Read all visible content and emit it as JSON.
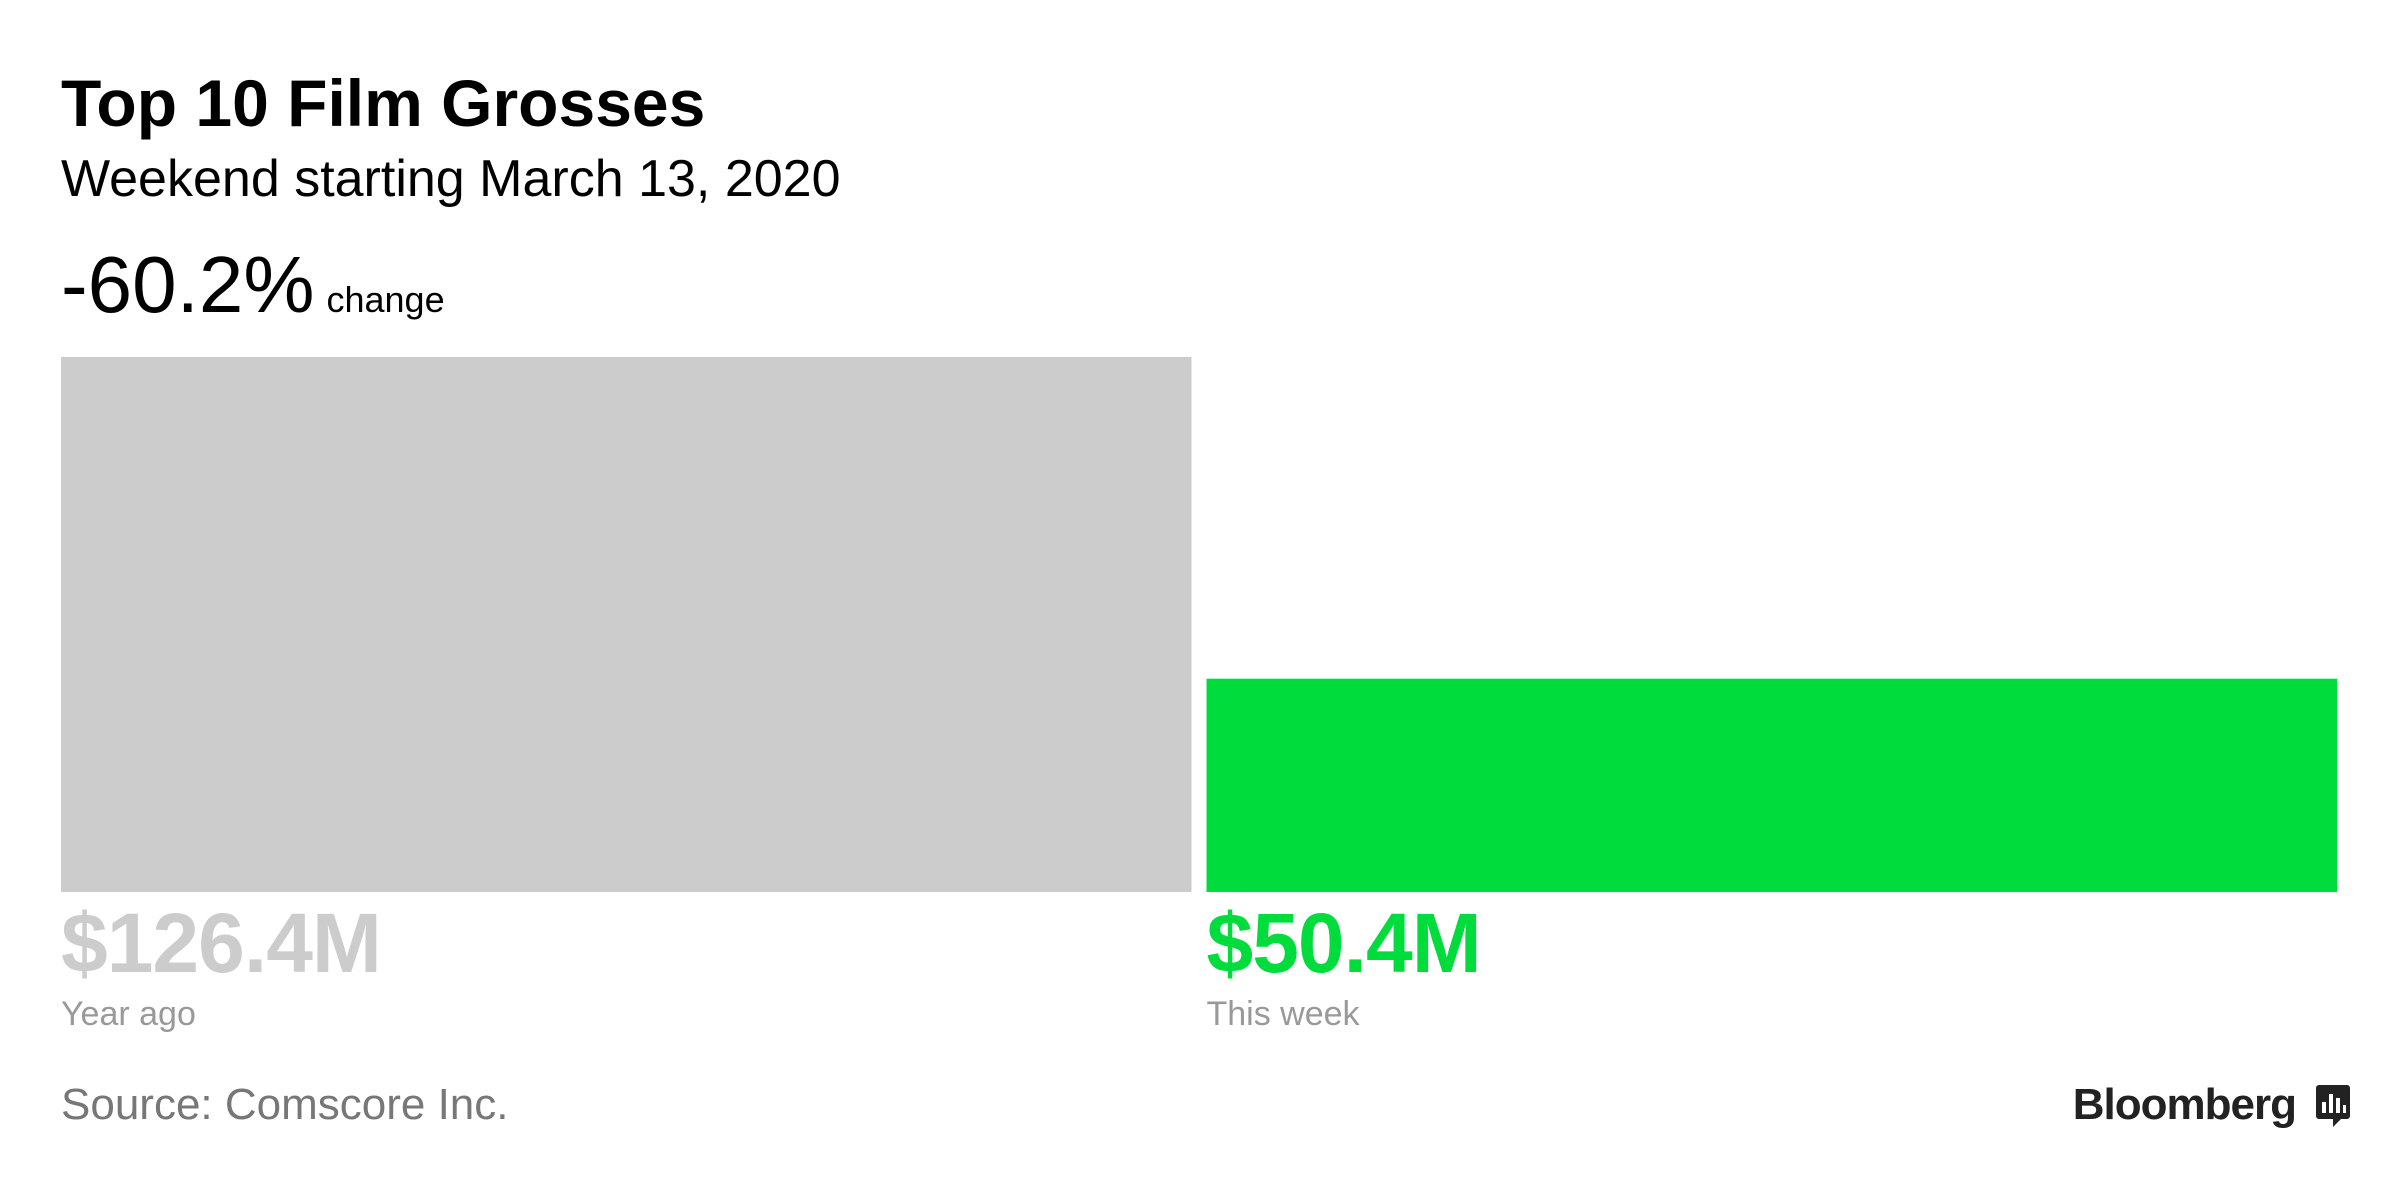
{
  "chart_data": {
    "type": "bar",
    "title": "Top 10 Film Grosses",
    "subtitle": "Weekend starting March 13, 2020",
    "change": "-60.2%",
    "change_text": "change",
    "categories": [
      "Year ago",
      "This week"
    ],
    "values": [
      126.4,
      50.4
    ],
    "value_labels": [
      "$126.4M",
      "$50.4M"
    ],
    "colors": [
      "#cccccc",
      "#00dc3c"
    ],
    "source": "Source: Comscore Inc.",
    "brand": "Bloomberg"
  }
}
